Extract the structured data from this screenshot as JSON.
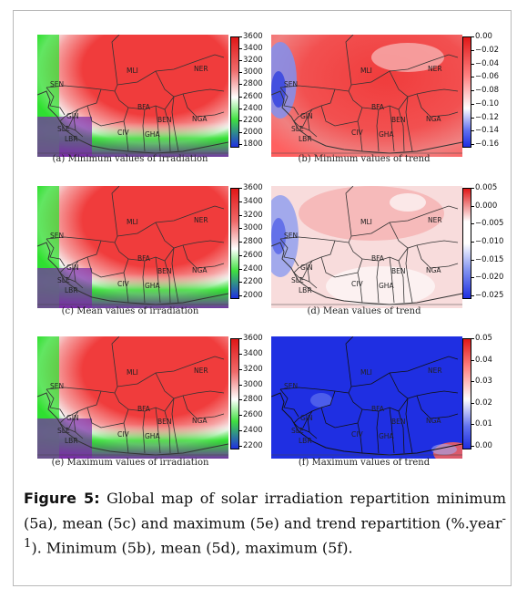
{
  "panels": [
    {
      "id": "a",
      "type": "irr",
      "caption": "(a) Minimum values of irradiation",
      "ticks": [
        "3600",
        "3400",
        "3200",
        "3000",
        "2800",
        "2600",
        "2400",
        "2200",
        "2000",
        "1800"
      ]
    },
    {
      "id": "b",
      "type": "trend",
      "caption": "(b) Minimum values of trend",
      "ticks": [
        "0.00",
        "−0.02",
        "−0.04",
        "−0.06",
        "−0.08",
        "−0.10",
        "−0.12",
        "−0.14",
        "−0.16"
      ]
    },
    {
      "id": "c",
      "type": "irr",
      "caption": "(c) Mean values of irradiation",
      "ticks": [
        "3600",
        "3400",
        "3200",
        "3000",
        "2800",
        "2600",
        "2400",
        "2200",
        "2000"
      ]
    },
    {
      "id": "d",
      "type": "trend2",
      "caption": "(d) Mean values of trend",
      "ticks": [
        "0.005",
        "0.000",
        "−0.005",
        "−0.010",
        "−0.015",
        "−0.020",
        "−0.025"
      ]
    },
    {
      "id": "e",
      "type": "irr",
      "caption": "(e) Maximum values of irradiation",
      "ticks": [
        "3600",
        "3400",
        "3200",
        "3000",
        "2800",
        "2600",
        "2400",
        "2200"
      ]
    },
    {
      "id": "f",
      "type": "trend3",
      "caption": "(f) Maximum values of trend",
      "ticks": [
        "0.05",
        "0.04",
        "0.03",
        "0.02",
        "0.01",
        "0.00"
      ]
    }
  ],
  "country_labels": [
    "MLI",
    "NER",
    "SEN",
    "BFA",
    "NGA",
    "GIN",
    "CIV",
    "GHA",
    "BEN",
    "SLE",
    "LBR"
  ],
  "figure_caption": {
    "bold": "Figure 5:",
    "text": " Global map of solar irradiation repartition minimum (5a), mean (5c) and maximum (5e) and trend repartition (%.year",
    "sup": "-1",
    "text2": "). Minimum (5b), mean (5d), maximum (5f)."
  },
  "colors": {
    "red": "#f03c3c",
    "white": "#ffffff",
    "blue": "#2020e0",
    "green": "#30e030",
    "purple": "#7a2aa8"
  }
}
